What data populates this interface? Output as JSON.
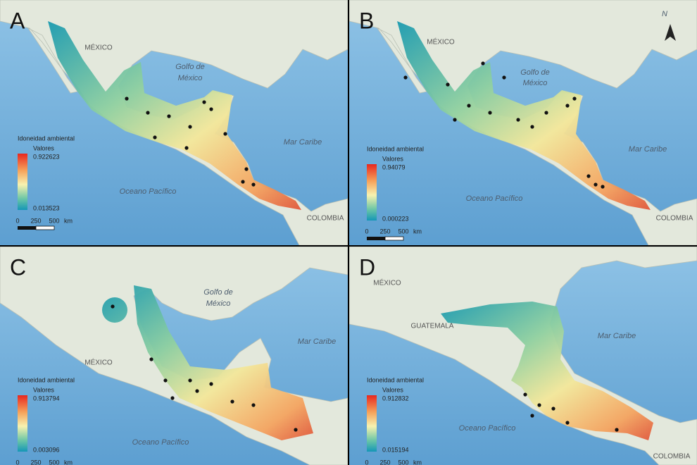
{
  "panels": [
    {
      "label": "A",
      "places": [
        "MÉXICO",
        "Golfo de",
        "México",
        "Mar Caribe",
        "Oceano Pacífico",
        "COLOMBIA"
      ],
      "legend": {
        "title": "Idoneidad ambiental",
        "subtitle": "Valores",
        "max": "0.922623",
        "min": "0.013523"
      },
      "scale": [
        "0",
        "250",
        "500",
        "km"
      ]
    },
    {
      "label": "B",
      "places": [
        "N",
        "MÉXICO",
        "Golfo de",
        "México",
        "Mar Caribe",
        "Oceano Pacífico",
        "COLOMBIA"
      ],
      "legend": {
        "title": "Idoneidad ambiental",
        "subtitle": "Valores",
        "max": "0.94079",
        "min": "0.000223"
      },
      "scale": [
        "0",
        "250",
        "500",
        "km"
      ]
    },
    {
      "label": "C",
      "places": [
        "Golfo de",
        "México",
        "MÉXICO",
        "Mar Caribe",
        "Oceano Pacífico"
      ],
      "legend": {
        "title": "Idoneidad ambiental",
        "subtitle": "Valores",
        "max": "0.913794",
        "min": "0.003096"
      },
      "scale": [
        "0",
        "250",
        "500",
        "km"
      ]
    },
    {
      "label": "D",
      "places": [
        "MÉXICO",
        "GUATEMALA",
        "Mar Caribe",
        "Oceano Pacífico",
        "COLOMBIA"
      ],
      "legend": {
        "title": "Idoneidad ambiental",
        "subtitle": "Valores",
        "max": "0.912832",
        "min": "0.015194"
      },
      "scale": [
        "0",
        "250",
        "500",
        "km"
      ]
    }
  ]
}
